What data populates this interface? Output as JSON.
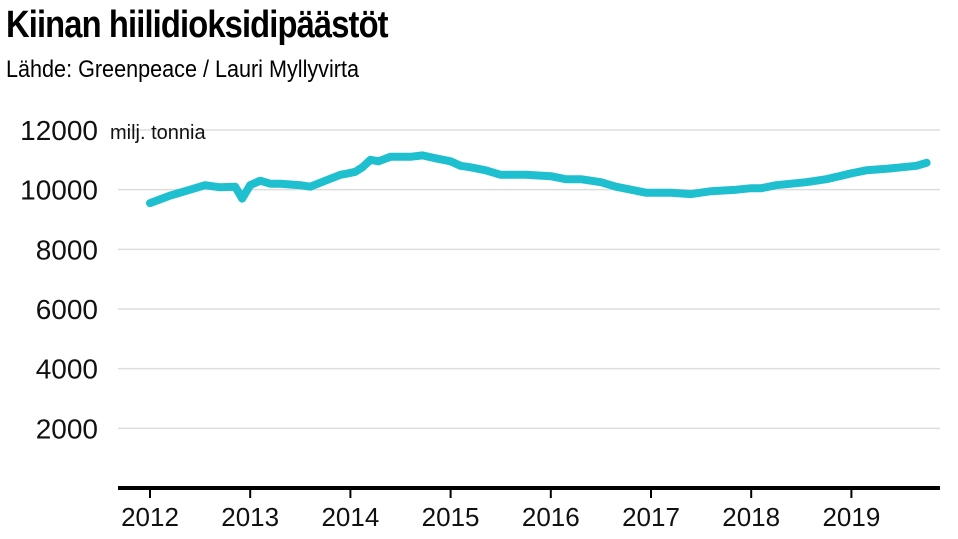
{
  "title": "Kiinan hiilidioksidipäästöt",
  "subtitle": "Lähde: Greenpeace / Lauri Myllyvirta",
  "colors": {
    "line": "#1ebfcf",
    "grid": "#dddddd",
    "axis": "#000000"
  },
  "chart_data": {
    "type": "line",
    "title": "Kiinan hiilidioksidipäästöt",
    "xlabel": "",
    "ylabel": "",
    "unit_label": "milj. tonnia",
    "y_ticks": [
      12000,
      10000,
      8000,
      6000,
      4000,
      2000
    ],
    "x_ticks": [
      "2012",
      "2013",
      "2014",
      "2015",
      "2016",
      "2017",
      "2018",
      "2019"
    ],
    "ylim": [
      0,
      12000
    ],
    "xlim": [
      2011.7,
      2019.9
    ],
    "grid": true,
    "series": [
      {
        "values": [
          [
            2012.0,
            9550
          ],
          [
            2012.2,
            9800
          ],
          [
            2012.4,
            10000
          ],
          [
            2012.55,
            10150
          ],
          [
            2012.7,
            10080
          ],
          [
            2012.85,
            10100
          ],
          [
            2012.92,
            9700
          ],
          [
            2013.0,
            10150
          ],
          [
            2013.1,
            10300
          ],
          [
            2013.2,
            10200
          ],
          [
            2013.3,
            10200
          ],
          [
            2013.5,
            10150
          ],
          [
            2013.6,
            10100
          ],
          [
            2013.75,
            10300
          ],
          [
            2013.9,
            10500
          ],
          [
            2013.98,
            10550
          ],
          [
            2014.05,
            10600
          ],
          [
            2014.12,
            10750
          ],
          [
            2014.2,
            11000
          ],
          [
            2014.28,
            10950
          ],
          [
            2014.4,
            11100
          ],
          [
            2014.55,
            11100
          ],
          [
            2014.6,
            11100
          ],
          [
            2014.72,
            11150
          ],
          [
            2014.85,
            11050
          ],
          [
            2015.0,
            10950
          ],
          [
            2015.1,
            10800
          ],
          [
            2015.2,
            10750
          ],
          [
            2015.35,
            10650
          ],
          [
            2015.5,
            10500
          ],
          [
            2015.75,
            10500
          ],
          [
            2016.0,
            10450
          ],
          [
            2016.15,
            10350
          ],
          [
            2016.3,
            10350
          ],
          [
            2016.5,
            10250
          ],
          [
            2016.65,
            10100
          ],
          [
            2016.8,
            10000
          ],
          [
            2016.95,
            9900
          ],
          [
            2017.2,
            9900
          ],
          [
            2017.4,
            9850
          ],
          [
            2017.6,
            9950
          ],
          [
            2017.85,
            10000
          ],
          [
            2018.0,
            10050
          ],
          [
            2018.1,
            10050
          ],
          [
            2018.25,
            10150
          ],
          [
            2018.4,
            10200
          ],
          [
            2018.55,
            10250
          ],
          [
            2018.75,
            10350
          ],
          [
            2018.88,
            10450
          ],
          [
            2019.0,
            10550
          ],
          [
            2019.15,
            10650
          ],
          [
            2019.35,
            10700
          ],
          [
            2019.5,
            10750
          ],
          [
            2019.65,
            10800
          ],
          [
            2019.75,
            10900
          ]
        ]
      }
    ]
  }
}
